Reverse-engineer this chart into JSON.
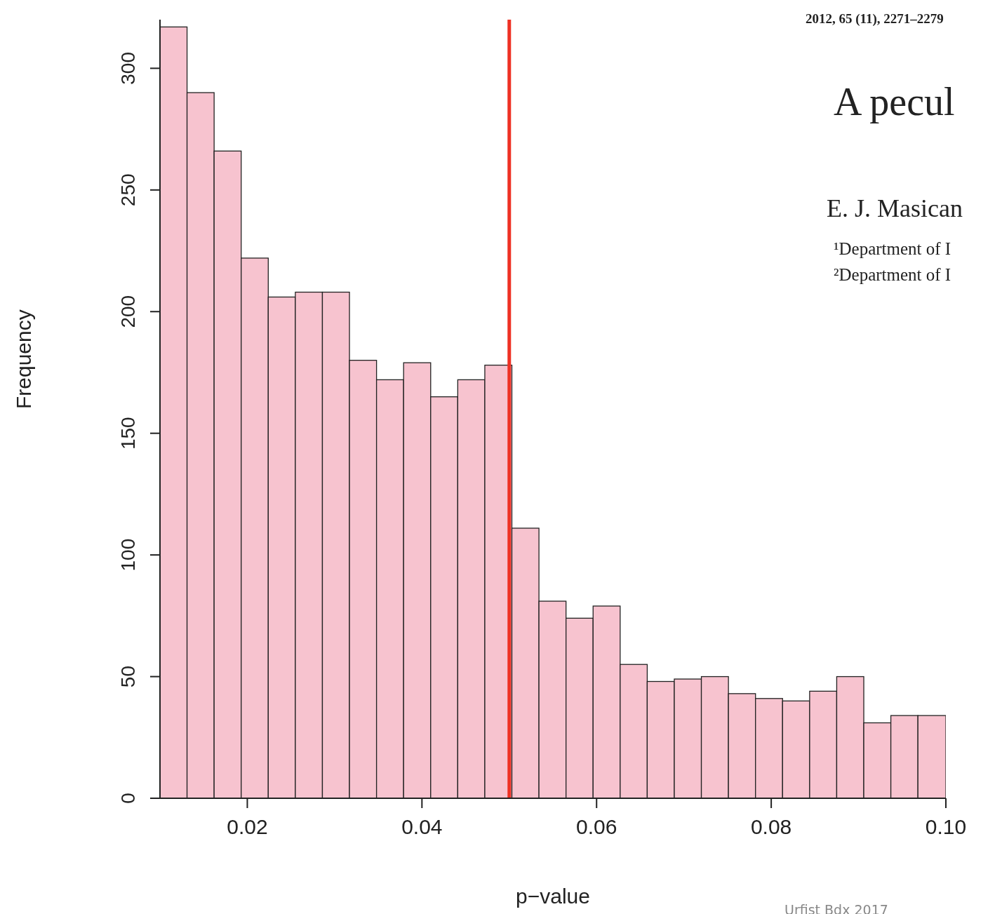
{
  "chart_data": {
    "type": "histogram",
    "xlabel": "p−value",
    "ylabel": "Frequency",
    "bins": [
      0.01,
      0.0131,
      0.0162,
      0.0193,
      0.0224,
      0.0255,
      0.0286,
      0.0317,
      0.0348,
      0.0379,
      0.041,
      0.0441,
      0.0472,
      0.0503,
      0.0534,
      0.0565,
      0.0596,
      0.0627,
      0.0658,
      0.0689,
      0.072,
      0.0751,
      0.0782,
      0.0813,
      0.0844,
      0.0875,
      0.0906,
      0.0937,
      0.0968,
      0.1
    ],
    "values": [
      317,
      290,
      266,
      222,
      206,
      208,
      208,
      180,
      172,
      179,
      165,
      172,
      178,
      111,
      81,
      74,
      79,
      55,
      48,
      49,
      50,
      43,
      41,
      40,
      44,
      50,
      31,
      34,
      34
    ],
    "color": "#f7c3cf",
    "xlim": [
      0.01,
      0.1
    ],
    "xticks": [
      0.02,
      0.04,
      0.06,
      0.08,
      {
        "value": 0.1,
        "label": "0.10"
      }
    ],
    "ylim": [
      0,
      320
    ],
    "yticks": [
      0,
      50,
      100,
      150,
      200,
      250,
      300
    ],
    "ref_lines": [
      {
        "axis": "x",
        "value": 0.05,
        "color": "#ee3124"
      }
    ],
    "annotations": [
      "2012, 65 (11), 2271–2279",
      "A pecul",
      "E. J.  Masican",
      "¹Department of I",
      "²Department of I",
      "Urfist Bdx 2017"
    ]
  }
}
